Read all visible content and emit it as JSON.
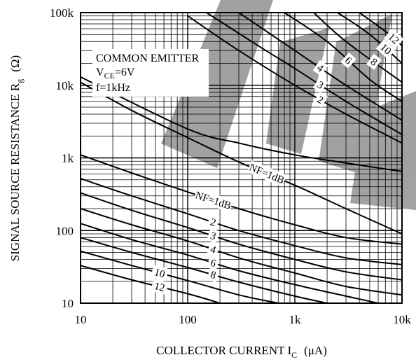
{
  "chart_data": {
    "type": "line",
    "xscale": "log",
    "yscale": "log",
    "xlim": [
      10,
      10000
    ],
    "ylim": [
      10,
      100000
    ],
    "xlabel": "COLLECTOR CURRENT I",
    "xlabel_sub": "C",
    "xlabel_unit": "(μA)",
    "ylabel": "SIGNAL SOURCE RESISTANCE R",
    "ylabel_sub": "g",
    "ylabel_unit": "(Ω)",
    "x_ticks": [
      10,
      100,
      1000,
      10000
    ],
    "x_tick_labels": [
      "10",
      "100",
      "1k",
      "10k"
    ],
    "y_ticks": [
      10,
      100,
      1000,
      10000,
      100000
    ],
    "y_tick_labels": [
      "10",
      "100",
      "1k",
      "10k",
      "100k"
    ],
    "grid": true,
    "conditions": {
      "line1": "COMMON EMITTER",
      "line2_main": "V",
      "line2_sub": "CE",
      "line2_rest": "=6V",
      "line3": "f=1kHz"
    },
    "series": [
      {
        "name": "NF=1dB",
        "group": "upper",
        "label": "NF=1dB",
        "x": [
          10,
          30,
          100,
          300,
          1000,
          3000,
          10000
        ],
        "y": [
          11000,
          4500,
          1900,
          880,
          420,
          200,
          90
        ]
      },
      {
        "name": "NF=1dB",
        "group": "middle",
        "label": "",
        "x": [
          10,
          100,
          300,
          1000,
          3000,
          10000
        ],
        "y": [
          13000,
          2500,
          1600,
          1100,
          850,
          650
        ]
      },
      {
        "name": "2",
        "group": "upper",
        "label": "2",
        "x": [
          100,
          300,
          1000,
          3000,
          10000
        ],
        "y": [
          90000,
          30000,
          10000,
          4000,
          1600
        ]
      },
      {
        "name": "3",
        "group": "upper",
        "label": "3",
        "x": [
          150,
          500,
          1000,
          3000,
          10000
        ],
        "y": [
          100000,
          32000,
          17000,
          6000,
          2100
        ]
      },
      {
        "name": "4",
        "group": "upper",
        "label": "4",
        "x": [
          300,
          1000,
          3000,
          10000
        ],
        "y": [
          100000,
          30000,
          10000,
          3300
        ]
      },
      {
        "name": "6",
        "group": "upper",
        "label": "6",
        "x": [
          800,
          2000,
          5000,
          10000
        ],
        "y": [
          100000,
          40000,
          12000,
          6000
        ]
      },
      {
        "name": "8",
        "group": "upper",
        "label": "8",
        "x": [
          1500,
          3000,
          10000
        ],
        "y": [
          100000,
          40000,
          11000
        ]
      },
      {
        "name": "10",
        "group": "upper",
        "label": "10",
        "x": [
          2500,
          5000,
          10000
        ],
        "y": [
          100000,
          50000,
          20000
        ]
      },
      {
        "name": "12",
        "group": "upper",
        "label": "12",
        "x": [
          4000,
          7000,
          10000
        ],
        "y": [
          100000,
          55000,
          35000
        ]
      },
      {
        "name": "NF=1dB",
        "group": "lower",
        "label": "NF=1dB",
        "x": [
          10,
          30,
          100,
          300,
          1000,
          3000,
          10000
        ],
        "y": [
          1100,
          620,
          340,
          200,
          120,
          80,
          65
        ]
      },
      {
        "name": "2",
        "group": "lower",
        "label": "2",
        "x": [
          10,
          30,
          100,
          300,
          1000,
          3000,
          10000
        ],
        "y": [
          520,
          300,
          170,
          100,
          62,
          42,
          34
        ]
      },
      {
        "name": "3",
        "group": "lower",
        "label": "3",
        "x": [
          10,
          30,
          100,
          300,
          1000,
          3000,
          10000
        ],
        "y": [
          330,
          190,
          110,
          65,
          40,
          27,
          21
        ]
      },
      {
        "name": "4",
        "group": "lower",
        "label": "4",
        "x": [
          10,
          30,
          100,
          300,
          1000,
          3000,
          10000
        ],
        "y": [
          200,
          120,
          72,
          42,
          26,
          17,
          13
        ]
      },
      {
        "name": "6",
        "group": "lower",
        "label": "6",
        "x": [
          10,
          30,
          100,
          300,
          1000,
          3000,
          6000
        ],
        "y": [
          125,
          75,
          46,
          28,
          18,
          12.5,
          10
        ]
      },
      {
        "name": "8",
        "group": "lower",
        "label": "8",
        "x": [
          10,
          30,
          100,
          300,
          1000,
          2000
        ],
        "y": [
          80,
          50,
          31,
          19.5,
          12.5,
          10
        ]
      },
      {
        "name": "10",
        "group": "lower",
        "label": "10",
        "x": [
          10,
          30,
          100,
          300,
          700
        ],
        "y": [
          52,
          33,
          20.5,
          13,
          10
        ]
      },
      {
        "name": "12",
        "group": "lower",
        "label": "12",
        "x": [
          10,
          30,
          100,
          200
        ],
        "y": [
          33,
          21,
          13.5,
          10
        ]
      }
    ]
  }
}
